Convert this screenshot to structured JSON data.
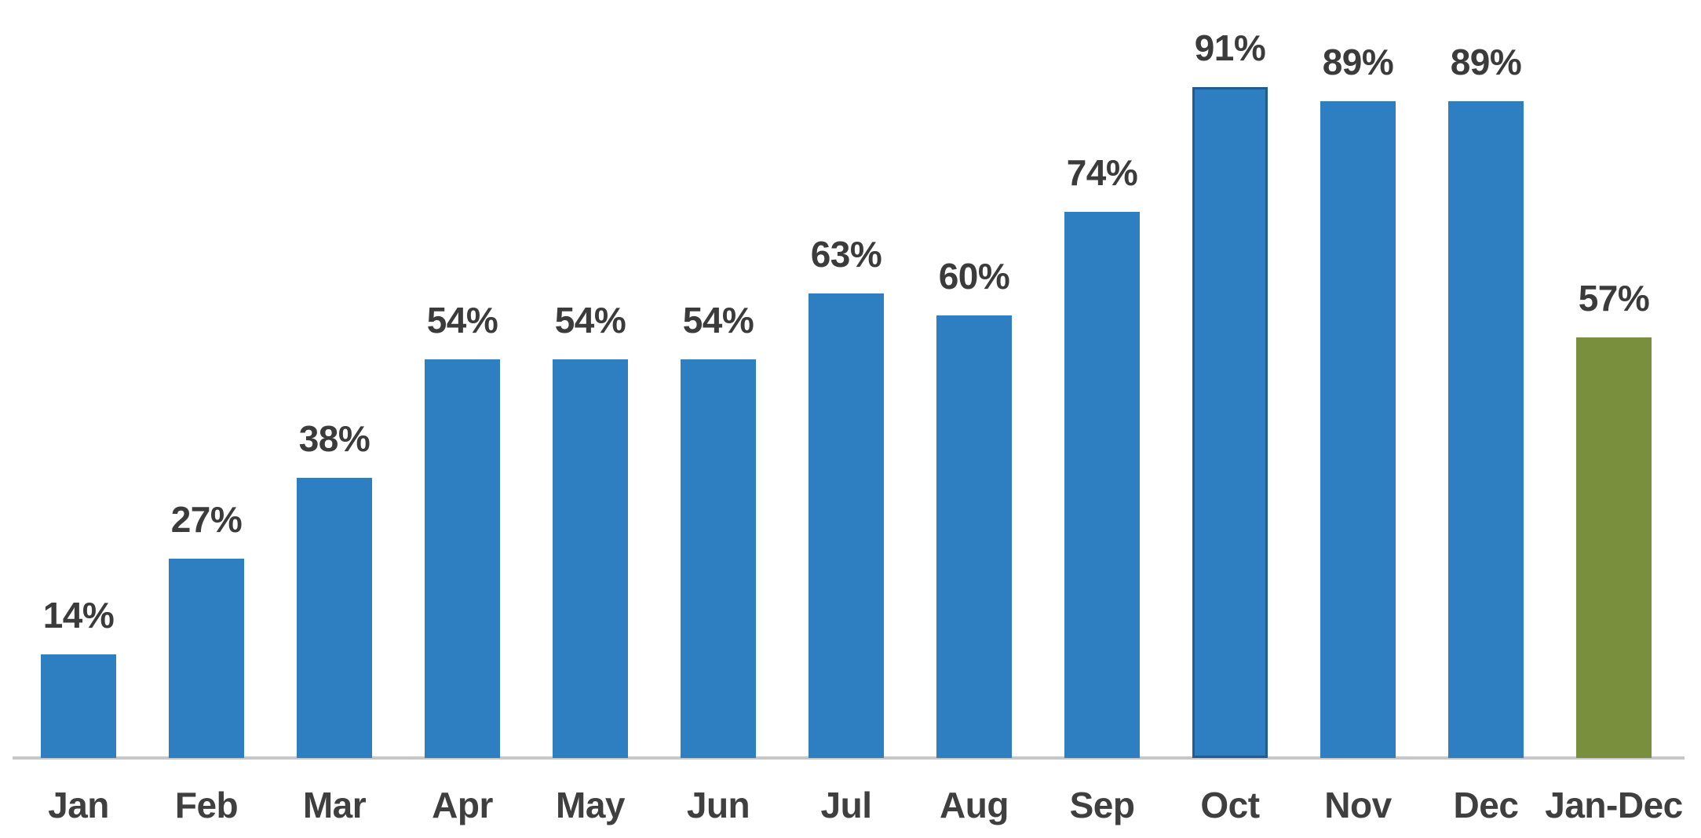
{
  "chart_data": {
    "type": "bar",
    "title": "",
    "xlabel": "",
    "ylabel": "",
    "categories": [
      "Jan",
      "Feb",
      "Mar",
      "Apr",
      "May",
      "Jun",
      "Jul",
      "Aug",
      "Sep",
      "Oct",
      "Nov",
      "Dec",
      "Jan-Dec"
    ],
    "values": [
      14,
      27,
      38,
      54,
      54,
      54,
      63,
      60,
      74,
      91,
      89,
      89,
      57
    ],
    "value_labels": [
      "14%",
      "27%",
      "38%",
      "54%",
      "54%",
      "54%",
      "63%",
      "60%",
      "74%",
      "91%",
      "89%",
      "89%",
      "57%"
    ],
    "ylim": [
      0,
      100
    ],
    "grid": false,
    "legend_position": "none",
    "summary_bar_index": 12,
    "outlined_bar_index": 9,
    "colors": {
      "bar": "#2e7fc2",
      "summary_bar": "#7a8f3e",
      "outlined_bar_border": "#1f5c96",
      "value_label_text": "#3b3b3b",
      "tick_label_text": "#3f3f3f",
      "axis_line": "#c7c7c7",
      "background": "#ffffff"
    }
  }
}
